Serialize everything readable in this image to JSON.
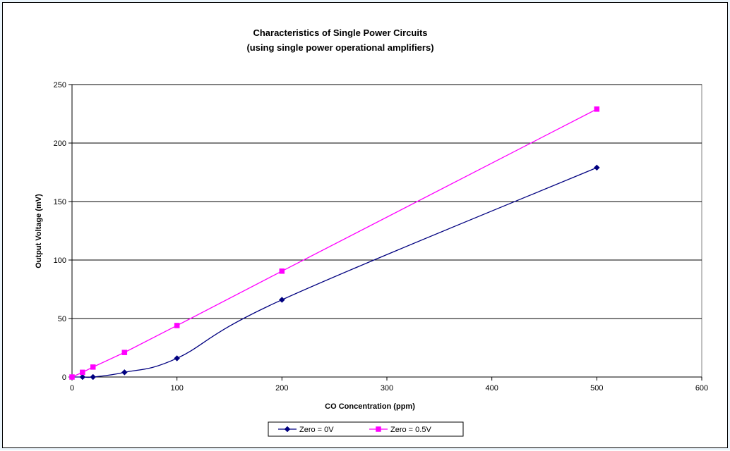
{
  "chart_data": {
    "type": "scatter",
    "title": "Characteristics of Single Power Circuits",
    "subtitle": "(using single power operational amplifiers)",
    "xlabel": "CO Concentration (ppm)",
    "ylabel": "Output Voltage (mV)",
    "xlim": [
      0,
      600
    ],
    "ylim": [
      0,
      250
    ],
    "x_ticks": [
      0,
      100,
      200,
      300,
      400,
      500,
      600
    ],
    "y_ticks": [
      0,
      50,
      100,
      150,
      200,
      250
    ],
    "grid": "horizontal",
    "legend_position": "bottom",
    "series": [
      {
        "name": "Zero = 0V",
        "color": "#000080",
        "marker": "diamond",
        "line": "smooth",
        "points": [
          {
            "x": 0,
            "y": 0
          },
          {
            "x": 10,
            "y": 0
          },
          {
            "x": 20,
            "y": 0
          },
          {
            "x": 50,
            "y": 4
          },
          {
            "x": 100,
            "y": 16
          },
          {
            "x": 200,
            "y": 66
          },
          {
            "x": 500,
            "y": 179
          }
        ]
      },
      {
        "name": "Zero = 0.5V",
        "color": "#ff00ff",
        "marker": "square",
        "line": "straight",
        "points": [
          {
            "x": 0,
            "y": 0
          },
          {
            "x": 10,
            "y": 4
          },
          {
            "x": 20,
            "y": 8.5
          },
          {
            "x": 50,
            "y": 21
          },
          {
            "x": 100,
            "y": 44
          },
          {
            "x": 200,
            "y": 90.5
          },
          {
            "x": 500,
            "y": 229
          }
        ]
      }
    ]
  }
}
